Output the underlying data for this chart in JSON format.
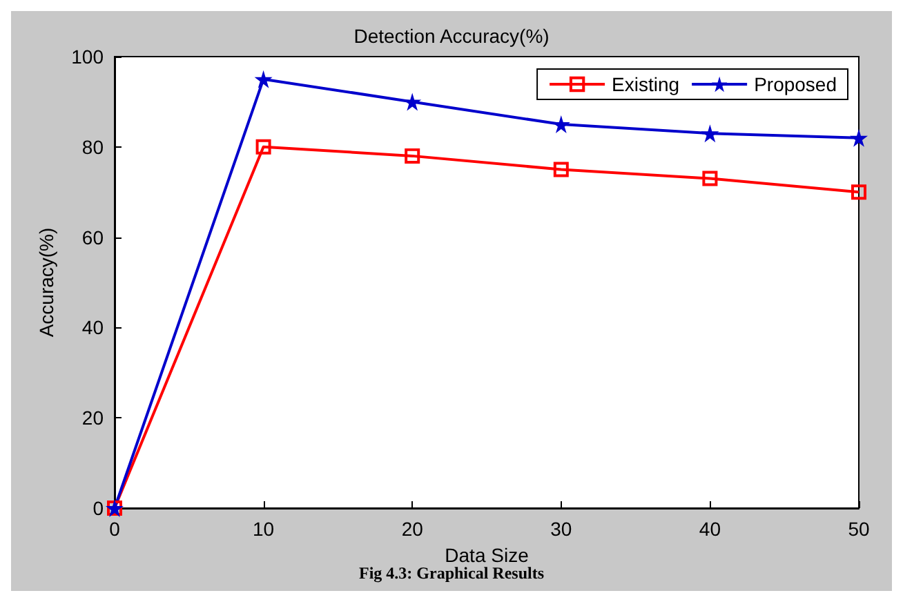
{
  "chart_data": {
    "type": "line",
    "title": "Detection Accuracy(%)",
    "xlabel": "Data Size",
    "ylabel": "Accuracy(%)",
    "x": [
      0,
      10,
      20,
      30,
      40,
      50
    ],
    "series": [
      {
        "name": "Existing",
        "color": "#ff0000",
        "values": [
          0,
          80,
          78,
          75,
          73,
          70
        ],
        "marker": "square"
      },
      {
        "name": "Proposed",
        "color": "#0000cc",
        "values": [
          0,
          95,
          90,
          85,
          83,
          82
        ],
        "marker": "star"
      }
    ],
    "xlim": [
      0,
      50
    ],
    "xticks": [
      0,
      10,
      20,
      30,
      40,
      50
    ],
    "ylim": [
      0,
      100
    ],
    "yticks": [
      0,
      20,
      40,
      60,
      80,
      100
    ],
    "grid": false,
    "legend": "top right",
    "line_style": "solid",
    "annotations": [
      "Fig 4.3: Graphical Results"
    ]
  }
}
